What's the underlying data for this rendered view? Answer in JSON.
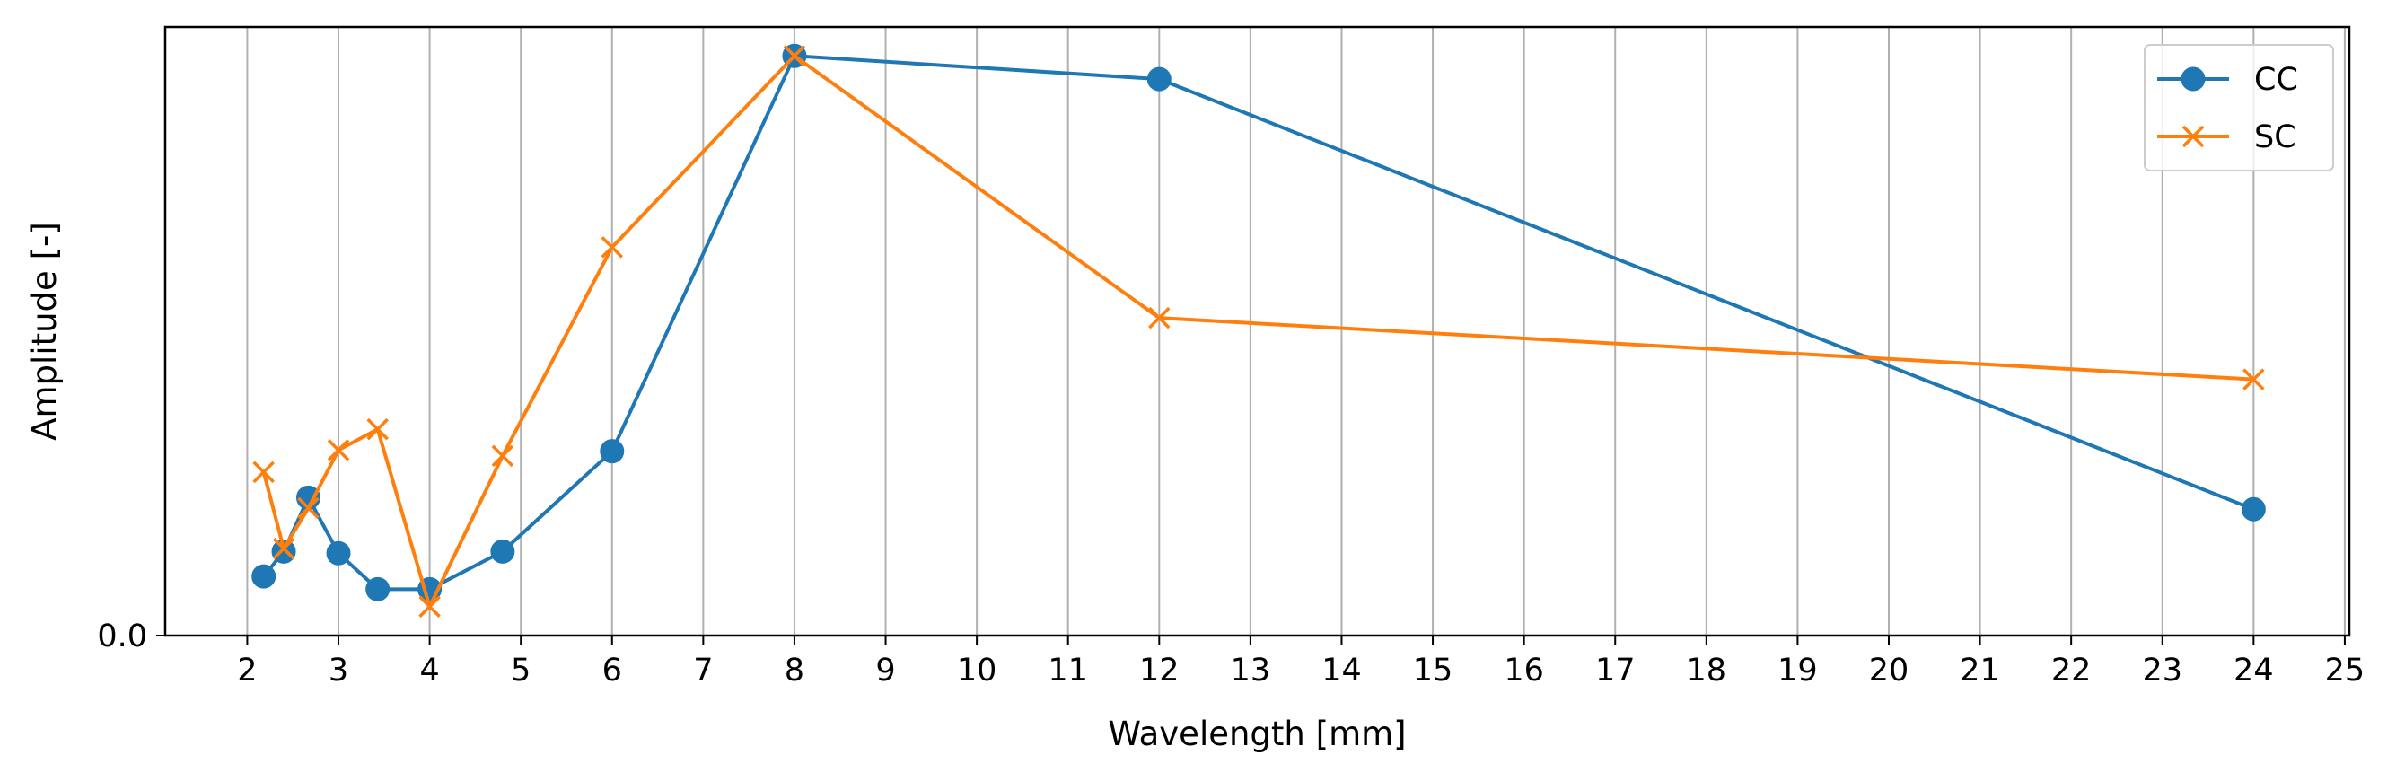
{
  "chart_data": {
    "type": "line",
    "title": "",
    "xlabel": "Wavelength [mm]",
    "ylabel": "Amplitude [-]",
    "xlim": [
      1.1,
      25.05
    ],
    "ylim": [
      0.0,
      1.05
    ],
    "x_ticks": [
      2,
      3,
      4,
      5,
      6,
      7,
      8,
      9,
      10,
      11,
      12,
      13,
      14,
      15,
      16,
      17,
      18,
      19,
      20,
      21,
      22,
      23,
      24,
      25
    ],
    "y_ticks": [
      {
        "value": 0.0,
        "label": "0.0"
      }
    ],
    "grid": "vertical",
    "legend_position": "top-right",
    "series": [
      {
        "name": "CC",
        "color": "#1f77b4",
        "marker": "circle",
        "points": [
          {
            "x": 2.18,
            "y": 0.102
          },
          {
            "x": 2.4,
            "y": 0.145
          },
          {
            "x": 2.67,
            "y": 0.238
          },
          {
            "x": 3.0,
            "y": 0.142
          },
          {
            "x": 3.43,
            "y": 0.08
          },
          {
            "x": 4.0,
            "y": 0.08
          },
          {
            "x": 4.8,
            "y": 0.145
          },
          {
            "x": 6.0,
            "y": 0.318
          },
          {
            "x": 8.0,
            "y": 1.0
          },
          {
            "x": 12.0,
            "y": 0.96
          },
          {
            "x": 24.0,
            "y": 0.218
          }
        ]
      },
      {
        "name": "SC",
        "color": "#ff7f0e",
        "marker": "x",
        "points": [
          {
            "x": 2.18,
            "y": 0.282
          },
          {
            "x": 2.4,
            "y": 0.15
          },
          {
            "x": 2.67,
            "y": 0.22
          },
          {
            "x": 3.0,
            "y": 0.32
          },
          {
            "x": 3.43,
            "y": 0.356
          },
          {
            "x": 4.0,
            "y": 0.05
          },
          {
            "x": 4.8,
            "y": 0.31
          },
          {
            "x": 6.0,
            "y": 0.67
          },
          {
            "x": 8.0,
            "y": 1.0
          },
          {
            "x": 12.0,
            "y": 0.548
          },
          {
            "x": 24.0,
            "y": 0.442
          }
        ]
      }
    ]
  }
}
